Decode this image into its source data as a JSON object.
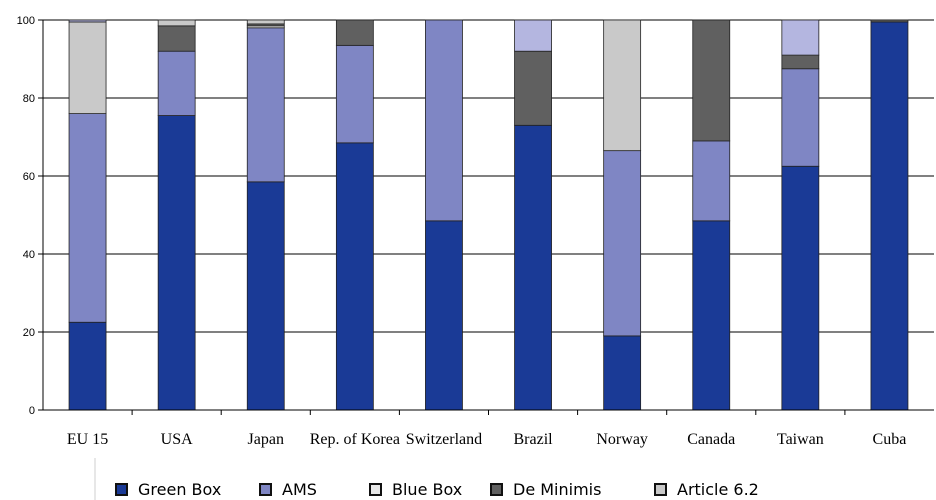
{
  "chart_data": {
    "type": "bar",
    "stacked": true,
    "categories": [
      "EU 15",
      "USA",
      "Japan",
      "Rep. of Korea",
      "Switzerland",
      "Brazil",
      "Norway",
      "Canada",
      "Taiwan",
      "Cuba"
    ],
    "ylim": [
      0,
      100
    ],
    "yticks": [
      0,
      20,
      40,
      60,
      80,
      100
    ],
    "grid": true,
    "legend_position": "bottom",
    "series": [
      {
        "name": "Green Box",
        "color": "#1a3a96",
        "values": [
          22.5,
          75.5,
          58.5,
          68.5,
          48.5,
          73,
          19,
          48.5,
          62.5,
          99.5
        ]
      },
      {
        "name": "AMS",
        "color": "#7f86c4",
        "values": [
          53.5,
          16.5,
          39.5,
          25,
          51.5,
          0,
          47.5,
          20.5,
          25,
          0
        ]
      },
      {
        "name": "Blue Box",
        "color": "#e8e8e8",
        "values": [
          0,
          0,
          0.5,
          0,
          0,
          0,
          0,
          0,
          0,
          0
        ]
      },
      {
        "name": "De Minimis",
        "color": "#606060",
        "values": [
          0,
          6.5,
          0.5,
          6.5,
          0,
          19,
          0,
          31,
          3.5,
          0.5
        ]
      },
      {
        "name": "Article 6.2",
        "color": "#c9c9c9",
        "values": [
          23.5,
          1.5,
          1,
          0,
          0,
          0,
          33.5,
          0,
          0,
          0
        ]
      },
      {
        "name": "",
        "color": "#b4b6e0",
        "values": [
          0.5,
          0,
          0,
          0,
          0,
          8,
          0,
          0,
          9,
          0
        ]
      }
    ]
  }
}
